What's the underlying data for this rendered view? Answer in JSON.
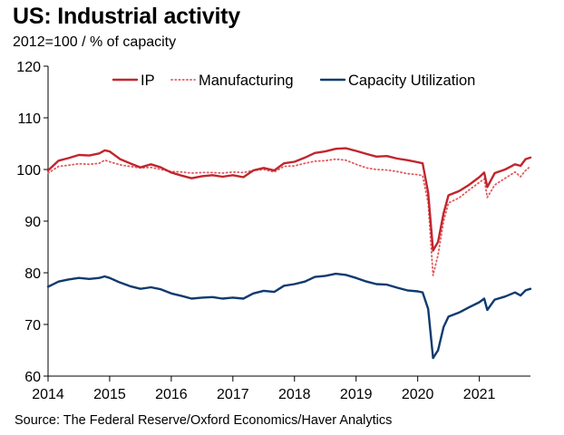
{
  "header": {
    "title": "US: Industrial activity",
    "subtitle": "2012=100 / % of capacity"
  },
  "footer": {
    "source": "Source: The Federal Reserve/Oxford Economics/Haver Analytics"
  },
  "chart_data": {
    "type": "line",
    "title": "US: Industrial activity",
    "subtitle": "2012=100 / % of capacity",
    "xlabel": "",
    "ylabel": "",
    "xlim": [
      2014.0,
      2021.83
    ],
    "ylim": [
      60,
      120
    ],
    "yticks": [
      60,
      70,
      80,
      90,
      100,
      110,
      120
    ],
    "xticks": [
      "2014",
      "2015",
      "2016",
      "2017",
      "2018",
      "2019",
      "2020",
      "2021"
    ],
    "grid": false,
    "legend_position": "top",
    "series": [
      {
        "name": "IP",
        "color": "#c0262d",
        "style": "solid",
        "points": [
          [
            2014.0,
            99.8
          ],
          [
            2014.17,
            101.7
          ],
          [
            2014.33,
            102.2
          ],
          [
            2014.5,
            102.8
          ],
          [
            2014.67,
            102.7
          ],
          [
            2014.83,
            103.1
          ],
          [
            2014.92,
            103.7
          ],
          [
            2015.0,
            103.5
          ],
          [
            2015.17,
            102.0
          ],
          [
            2015.33,
            101.2
          ],
          [
            2015.5,
            100.4
          ],
          [
            2015.67,
            101.0
          ],
          [
            2015.83,
            100.4
          ],
          [
            2016.0,
            99.4
          ],
          [
            2016.17,
            98.8
          ],
          [
            2016.33,
            98.3
          ],
          [
            2016.5,
            98.7
          ],
          [
            2016.67,
            98.9
          ],
          [
            2016.83,
            98.6
          ],
          [
            2017.0,
            98.9
          ],
          [
            2017.17,
            98.5
          ],
          [
            2017.33,
            99.8
          ],
          [
            2017.5,
            100.3
          ],
          [
            2017.67,
            99.8
          ],
          [
            2017.83,
            101.2
          ],
          [
            2018.0,
            101.5
          ],
          [
            2018.17,
            102.3
          ],
          [
            2018.33,
            103.2
          ],
          [
            2018.5,
            103.5
          ],
          [
            2018.67,
            104.0
          ],
          [
            2018.83,
            104.1
          ],
          [
            2019.0,
            103.6
          ],
          [
            2019.17,
            103.0
          ],
          [
            2019.33,
            102.5
          ],
          [
            2019.5,
            102.6
          ],
          [
            2019.67,
            102.1
          ],
          [
            2019.83,
            101.8
          ],
          [
            2020.0,
            101.4
          ],
          [
            2020.08,
            101.2
          ],
          [
            2020.17,
            95.5
          ],
          [
            2020.25,
            84.3
          ],
          [
            2020.33,
            86.0
          ],
          [
            2020.42,
            91.5
          ],
          [
            2020.5,
            95.0
          ],
          [
            2020.67,
            95.8
          ],
          [
            2020.83,
            97.0
          ],
          [
            2021.0,
            98.5
          ],
          [
            2021.08,
            99.4
          ],
          [
            2021.13,
            96.6
          ],
          [
            2021.25,
            99.3
          ],
          [
            2021.42,
            100.0
          ],
          [
            2021.58,
            101.0
          ],
          [
            2021.67,
            100.7
          ],
          [
            2021.75,
            102.0
          ],
          [
            2021.83,
            102.3
          ]
        ]
      },
      {
        "name": "Manufacturing",
        "color": "#e05a60",
        "style": "dotted",
        "points": [
          [
            2014.0,
            99.3
          ],
          [
            2014.17,
            100.6
          ],
          [
            2014.33,
            100.8
          ],
          [
            2014.5,
            101.1
          ],
          [
            2014.67,
            101.0
          ],
          [
            2014.83,
            101.2
          ],
          [
            2014.92,
            101.8
          ],
          [
            2015.0,
            101.5
          ],
          [
            2015.17,
            100.9
          ],
          [
            2015.33,
            100.6
          ],
          [
            2015.5,
            100.3
          ],
          [
            2015.67,
            100.4
          ],
          [
            2015.83,
            100.0
          ],
          [
            2016.0,
            99.6
          ],
          [
            2016.17,
            99.5
          ],
          [
            2016.33,
            99.3
          ],
          [
            2016.5,
            99.4
          ],
          [
            2016.67,
            99.4
          ],
          [
            2016.83,
            99.3
          ],
          [
            2017.0,
            99.5
          ],
          [
            2017.17,
            99.4
          ],
          [
            2017.33,
            99.8
          ],
          [
            2017.5,
            100.0
          ],
          [
            2017.67,
            99.5
          ],
          [
            2017.83,
            100.6
          ],
          [
            2018.0,
            100.7
          ],
          [
            2018.17,
            101.2
          ],
          [
            2018.33,
            101.6
          ],
          [
            2018.5,
            101.7
          ],
          [
            2018.67,
            102.0
          ],
          [
            2018.83,
            101.8
          ],
          [
            2019.0,
            101.0
          ],
          [
            2019.17,
            100.3
          ],
          [
            2019.33,
            100.0
          ],
          [
            2019.5,
            99.9
          ],
          [
            2019.67,
            99.6
          ],
          [
            2019.83,
            99.2
          ],
          [
            2020.0,
            99.0
          ],
          [
            2020.08,
            98.8
          ],
          [
            2020.17,
            93.5
          ],
          [
            2020.25,
            79.5
          ],
          [
            2020.33,
            83.5
          ],
          [
            2020.42,
            90.0
          ],
          [
            2020.5,
            93.5
          ],
          [
            2020.67,
            94.5
          ],
          [
            2020.83,
            96.0
          ],
          [
            2021.0,
            97.5
          ],
          [
            2021.08,
            98.2
          ],
          [
            2021.13,
            94.6
          ],
          [
            2021.25,
            97.0
          ],
          [
            2021.42,
            98.3
          ],
          [
            2021.58,
            99.5
          ],
          [
            2021.67,
            98.6
          ],
          [
            2021.75,
            99.8
          ],
          [
            2021.83,
            100.6
          ]
        ]
      },
      {
        "name": "Capacity Utilization",
        "color": "#0e3a6e",
        "style": "solid",
        "points": [
          [
            2014.0,
            77.3
          ],
          [
            2014.17,
            78.3
          ],
          [
            2014.33,
            78.7
          ],
          [
            2014.5,
            79.0
          ],
          [
            2014.67,
            78.8
          ],
          [
            2014.83,
            79.0
          ],
          [
            2014.92,
            79.3
          ],
          [
            2015.0,
            79.0
          ],
          [
            2015.17,
            78.1
          ],
          [
            2015.33,
            77.4
          ],
          [
            2015.5,
            76.9
          ],
          [
            2015.67,
            77.2
          ],
          [
            2015.83,
            76.8
          ],
          [
            2016.0,
            76.0
          ],
          [
            2016.17,
            75.5
          ],
          [
            2016.33,
            75.0
          ],
          [
            2016.5,
            75.2
          ],
          [
            2016.67,
            75.3
          ],
          [
            2016.83,
            75.0
          ],
          [
            2017.0,
            75.2
          ],
          [
            2017.17,
            75.0
          ],
          [
            2017.33,
            76.0
          ],
          [
            2017.5,
            76.5
          ],
          [
            2017.67,
            76.3
          ],
          [
            2017.83,
            77.5
          ],
          [
            2018.0,
            77.8
          ],
          [
            2018.17,
            78.3
          ],
          [
            2018.33,
            79.2
          ],
          [
            2018.5,
            79.4
          ],
          [
            2018.67,
            79.8
          ],
          [
            2018.83,
            79.6
          ],
          [
            2019.0,
            79.0
          ],
          [
            2019.17,
            78.3
          ],
          [
            2019.33,
            77.8
          ],
          [
            2019.5,
            77.7
          ],
          [
            2019.67,
            77.1
          ],
          [
            2019.83,
            76.6
          ],
          [
            2020.0,
            76.4
          ],
          [
            2020.08,
            76.2
          ],
          [
            2020.17,
            73.0
          ],
          [
            2020.25,
            63.5
          ],
          [
            2020.33,
            65.0
          ],
          [
            2020.42,
            69.5
          ],
          [
            2020.5,
            71.5
          ],
          [
            2020.67,
            72.3
          ],
          [
            2020.83,
            73.3
          ],
          [
            2021.0,
            74.3
          ],
          [
            2021.08,
            75.0
          ],
          [
            2021.13,
            72.8
          ],
          [
            2021.25,
            74.8
          ],
          [
            2021.42,
            75.4
          ],
          [
            2021.58,
            76.2
          ],
          [
            2021.67,
            75.6
          ],
          [
            2021.75,
            76.6
          ],
          [
            2021.83,
            76.9
          ]
        ]
      }
    ]
  }
}
